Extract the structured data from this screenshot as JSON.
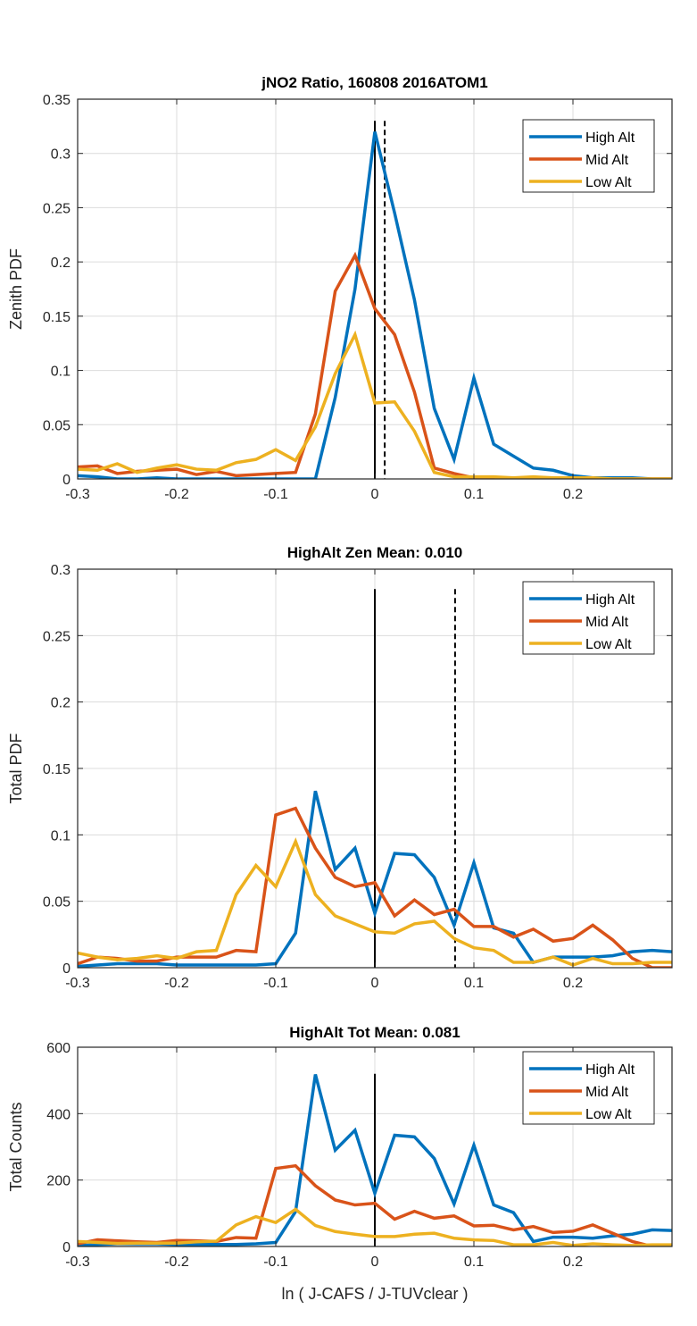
{
  "chart_data": [
    {
      "type": "line",
      "title": "jNO2 Ratio, 160808 2016ATOM1",
      "xlabel": "",
      "ylabel": "Zenith PDF",
      "xlim": [
        -0.3,
        0.3
      ],
      "ylim": [
        0,
        0.35
      ],
      "xticks": [
        "-0.3",
        "-0.2",
        "-0.1",
        "0",
        "0.1",
        "0.2"
      ],
      "xtick_values": [
        -0.3,
        -0.2,
        -0.1,
        0,
        0.1,
        0.2
      ],
      "yticks": [
        "0",
        "0.05",
        "0.1",
        "0.15",
        "0.2",
        "0.25",
        "0.3",
        "0.35"
      ],
      "ytick_values": [
        0,
        0.05,
        0.1,
        0.15,
        0.2,
        0.25,
        0.3,
        0.35
      ],
      "grid": true,
      "legend": "top-right",
      "vlines": [
        {
          "x": 0,
          "style": "solid",
          "ymax": 0.33
        },
        {
          "x": 0.01,
          "style": "dashed",
          "ymax": 0.33
        }
      ],
      "x": [
        -0.3,
        -0.28,
        -0.26,
        -0.24,
        -0.22,
        -0.2,
        -0.18,
        -0.16,
        -0.14,
        -0.12,
        -0.1,
        -0.08,
        -0.06,
        -0.04,
        -0.02,
        0,
        0.02,
        0.04,
        0.06,
        0.08,
        0.1,
        0.12,
        0.14,
        0.16,
        0.18,
        0.2,
        0.22,
        0.24,
        0.26,
        0.28,
        0.3
      ],
      "series": [
        {
          "name": "High Alt",
          "color": "#0072BD",
          "values": [
            0.003,
            0.002,
            0.0,
            0.0,
            0.001,
            0.0,
            0.0,
            0.0,
            0.0,
            0.0,
            0.0,
            0.0,
            0.0,
            0.075,
            0.175,
            0.32,
            0.245,
            0.165,
            0.065,
            0.018,
            0.093,
            0.032,
            0.021,
            0.01,
            0.008,
            0.003,
            0.001,
            0.001,
            0.001,
            0.0,
            0.0
          ]
        },
        {
          "name": "Mid Alt",
          "color": "#D95319",
          "values": [
            0.011,
            0.012,
            0.005,
            0.007,
            0.008,
            0.009,
            0.004,
            0.007,
            0.003,
            0.004,
            0.005,
            0.006,
            0.06,
            0.173,
            0.206,
            0.157,
            0.133,
            0.08,
            0.01,
            0.005,
            0.001,
            0.001,
            0.0,
            0.0,
            0.0,
            0.0,
            0.0,
            0.0,
            0.0,
            0.0,
            0.0
          ]
        },
        {
          "name": "Low Alt",
          "color": "#EDB120",
          "values": [
            0.009,
            0.008,
            0.014,
            0.006,
            0.01,
            0.013,
            0.009,
            0.008,
            0.015,
            0.018,
            0.027,
            0.017,
            0.048,
            0.097,
            0.133,
            0.07,
            0.071,
            0.044,
            0.006,
            0.002,
            0.002,
            0.002,
            0.001,
            0.002,
            0.001,
            0.001,
            0.001,
            0.0,
            0.0,
            0.0,
            0.0
          ]
        }
      ]
    },
    {
      "type": "line",
      "title": "HighAlt Zen Mean: 0.010",
      "xlabel": "",
      "ylabel": "Total PDF",
      "xlim": [
        -0.3,
        0.3
      ],
      "ylim": [
        0,
        0.3
      ],
      "xticks": [
        "-0.3",
        "-0.2",
        "-0.1",
        "0",
        "0.1",
        "0.2"
      ],
      "xtick_values": [
        -0.3,
        -0.2,
        -0.1,
        0,
        0.1,
        0.2
      ],
      "yticks": [
        "0",
        "0.05",
        "0.1",
        "0.15",
        "0.2",
        "0.25",
        "0.3"
      ],
      "ytick_values": [
        0,
        0.05,
        0.1,
        0.15,
        0.2,
        0.25,
        0.3
      ],
      "grid": true,
      "legend": "top-right",
      "vlines": [
        {
          "x": 0,
          "style": "solid",
          "ymax": 0.285
        },
        {
          "x": 0.081,
          "style": "dashed",
          "ymax": 0.285
        }
      ],
      "x": [
        -0.3,
        -0.28,
        -0.26,
        -0.24,
        -0.22,
        -0.2,
        -0.18,
        -0.16,
        -0.14,
        -0.12,
        -0.1,
        -0.08,
        -0.06,
        -0.04,
        -0.02,
        0,
        0.02,
        0.04,
        0.06,
        0.08,
        0.1,
        0.12,
        0.14,
        0.16,
        0.18,
        0.2,
        0.22,
        0.24,
        0.26,
        0.28,
        0.3
      ],
      "series": [
        {
          "name": "High Alt",
          "color": "#0072BD",
          "values": [
            0.001,
            0.002,
            0.003,
            0.003,
            0.003,
            0.002,
            0.002,
            0.002,
            0.002,
            0.002,
            0.003,
            0.026,
            0.133,
            0.074,
            0.09,
            0.041,
            0.086,
            0.085,
            0.068,
            0.032,
            0.079,
            0.03,
            0.026,
            0.004,
            0.008,
            0.008,
            0.008,
            0.009,
            0.012,
            0.013,
            0.012
          ]
        },
        {
          "name": "Mid Alt",
          "color": "#D95319",
          "values": [
            0.003,
            0.008,
            0.007,
            0.005,
            0.005,
            0.008,
            0.008,
            0.008,
            0.013,
            0.012,
            0.115,
            0.12,
            0.09,
            0.068,
            0.061,
            0.064,
            0.039,
            0.051,
            0.04,
            0.044,
            0.031,
            0.031,
            0.023,
            0.029,
            0.02,
            0.022,
            0.032,
            0.021,
            0.007,
            0.0,
            0.0
          ]
        },
        {
          "name": "Low Alt",
          "color": "#EDB120",
          "values": [
            0.011,
            0.008,
            0.006,
            0.007,
            0.009,
            0.007,
            0.012,
            0.013,
            0.055,
            0.077,
            0.061,
            0.095,
            0.055,
            0.039,
            0.033,
            0.027,
            0.026,
            0.033,
            0.035,
            0.022,
            0.015,
            0.013,
            0.004,
            0.004,
            0.008,
            0.002,
            0.007,
            0.003,
            0.003,
            0.004,
            0.004
          ]
        }
      ]
    },
    {
      "type": "line",
      "title": "HighAlt Tot Mean: 0.081",
      "xlabel": "ln ( J-CAFS / J-TUVclear )",
      "ylabel": "Total Counts",
      "xlim": [
        -0.3,
        0.3
      ],
      "ylim": [
        0,
        600
      ],
      "xticks": [
        "-0.3",
        "-0.2",
        "-0.1",
        "0",
        "0.1",
        "0.2"
      ],
      "xtick_values": [
        -0.3,
        -0.2,
        -0.1,
        0,
        0.1,
        0.2
      ],
      "yticks": [
        "0",
        "200",
        "400",
        "600"
      ],
      "ytick_values": [
        0,
        200,
        400,
        600
      ],
      "grid": true,
      "legend": "top-right",
      "vlines": [
        {
          "x": 0,
          "style": "solid",
          "ymax": 520
        }
      ],
      "x": [
        -0.3,
        -0.28,
        -0.26,
        -0.24,
        -0.22,
        -0.2,
        -0.18,
        -0.16,
        -0.14,
        -0.12,
        -0.1,
        -0.08,
        -0.06,
        -0.04,
        -0.02,
        0,
        0.02,
        0.04,
        0.06,
        0.08,
        0.1,
        0.12,
        0.14,
        0.16,
        0.18,
        0.2,
        0.22,
        0.24,
        0.26,
        0.28,
        0.3
      ],
      "series": [
        {
          "name": "High Alt",
          "color": "#0072BD",
          "values": [
            2,
            6,
            8,
            8,
            8,
            6,
            6,
            6,
            6,
            8,
            12,
            105,
            518,
            290,
            350,
            160,
            335,
            330,
            265,
            128,
            305,
            125,
            102,
            15,
            28,
            28,
            25,
            32,
            37,
            50,
            48
          ]
        },
        {
          "name": "Mid Alt",
          "color": "#D95319",
          "values": [
            8,
            20,
            17,
            14,
            12,
            18,
            17,
            15,
            27,
            25,
            235,
            243,
            183,
            140,
            125,
            130,
            82,
            106,
            85,
            92,
            62,
            64,
            50,
            60,
            42,
            46,
            65,
            40,
            15,
            0,
            0
          ]
        },
        {
          "name": "Low Alt",
          "color": "#EDB120",
          "values": [
            15,
            12,
            9,
            10,
            10,
            10,
            14,
            16,
            65,
            90,
            72,
            112,
            63,
            45,
            37,
            30,
            30,
            37,
            40,
            25,
            20,
            18,
            5,
            5,
            12,
            3,
            8,
            5,
            3,
            5,
            5
          ]
        }
      ]
    }
  ]
}
